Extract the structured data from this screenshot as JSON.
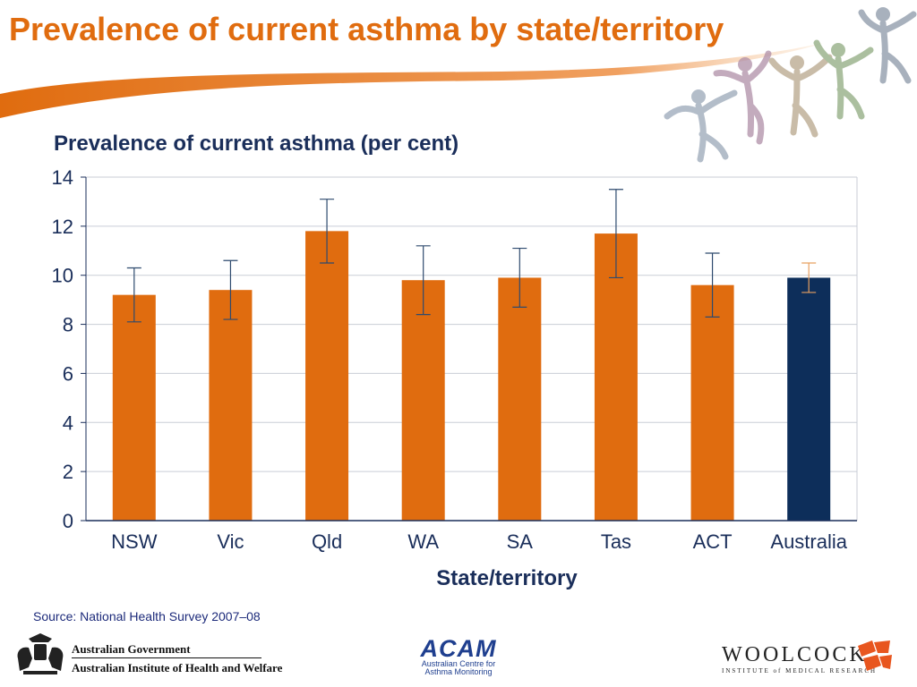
{
  "slide": {
    "title": "Prevalence of current asthma by state/territory",
    "source": "Source: National Health Survey 2007–08"
  },
  "logos": {
    "gov_line1": "Australian Government",
    "gov_line2": "Australian Institute of Health and Welfare",
    "acam_word": "ACAM",
    "acam_sub1": "Australian Centre for",
    "acam_sub2": "Asthma Monitoring",
    "woolcock_word": "WOOLCOCK",
    "woolcock_sub": "INSTITUTE of MEDICAL RESEARCH"
  },
  "colors": {
    "title": "#e06c0f",
    "bar_state": "#e06c0f",
    "bar_national": "#0d2e5a",
    "error_state": "#2e4a6e",
    "error_national": "#e8a060",
    "axis_text": "#1a2e5a",
    "grid": "#c9cdd6"
  },
  "chart_data": {
    "type": "bar",
    "title": "Prevalence of current asthma (per cent)",
    "xlabel": "State/territory",
    "ylabel": "",
    "ylim": [
      0,
      14
    ],
    "yticks": [
      0,
      2,
      4,
      6,
      8,
      10,
      12,
      14
    ],
    "grid": true,
    "categories": [
      "NSW",
      "Vic",
      "Qld",
      "WA",
      "SA",
      "Tas",
      "ACT",
      "Australia"
    ],
    "values": [
      9.2,
      9.4,
      11.8,
      9.8,
      9.9,
      11.7,
      9.6,
      9.9
    ],
    "error_low": [
      8.1,
      8.2,
      10.5,
      8.4,
      8.7,
      9.9,
      8.3,
      9.3
    ],
    "error_high": [
      10.3,
      10.6,
      13.1,
      11.2,
      11.1,
      13.5,
      10.9,
      10.5
    ],
    "highlight": "Australia"
  }
}
